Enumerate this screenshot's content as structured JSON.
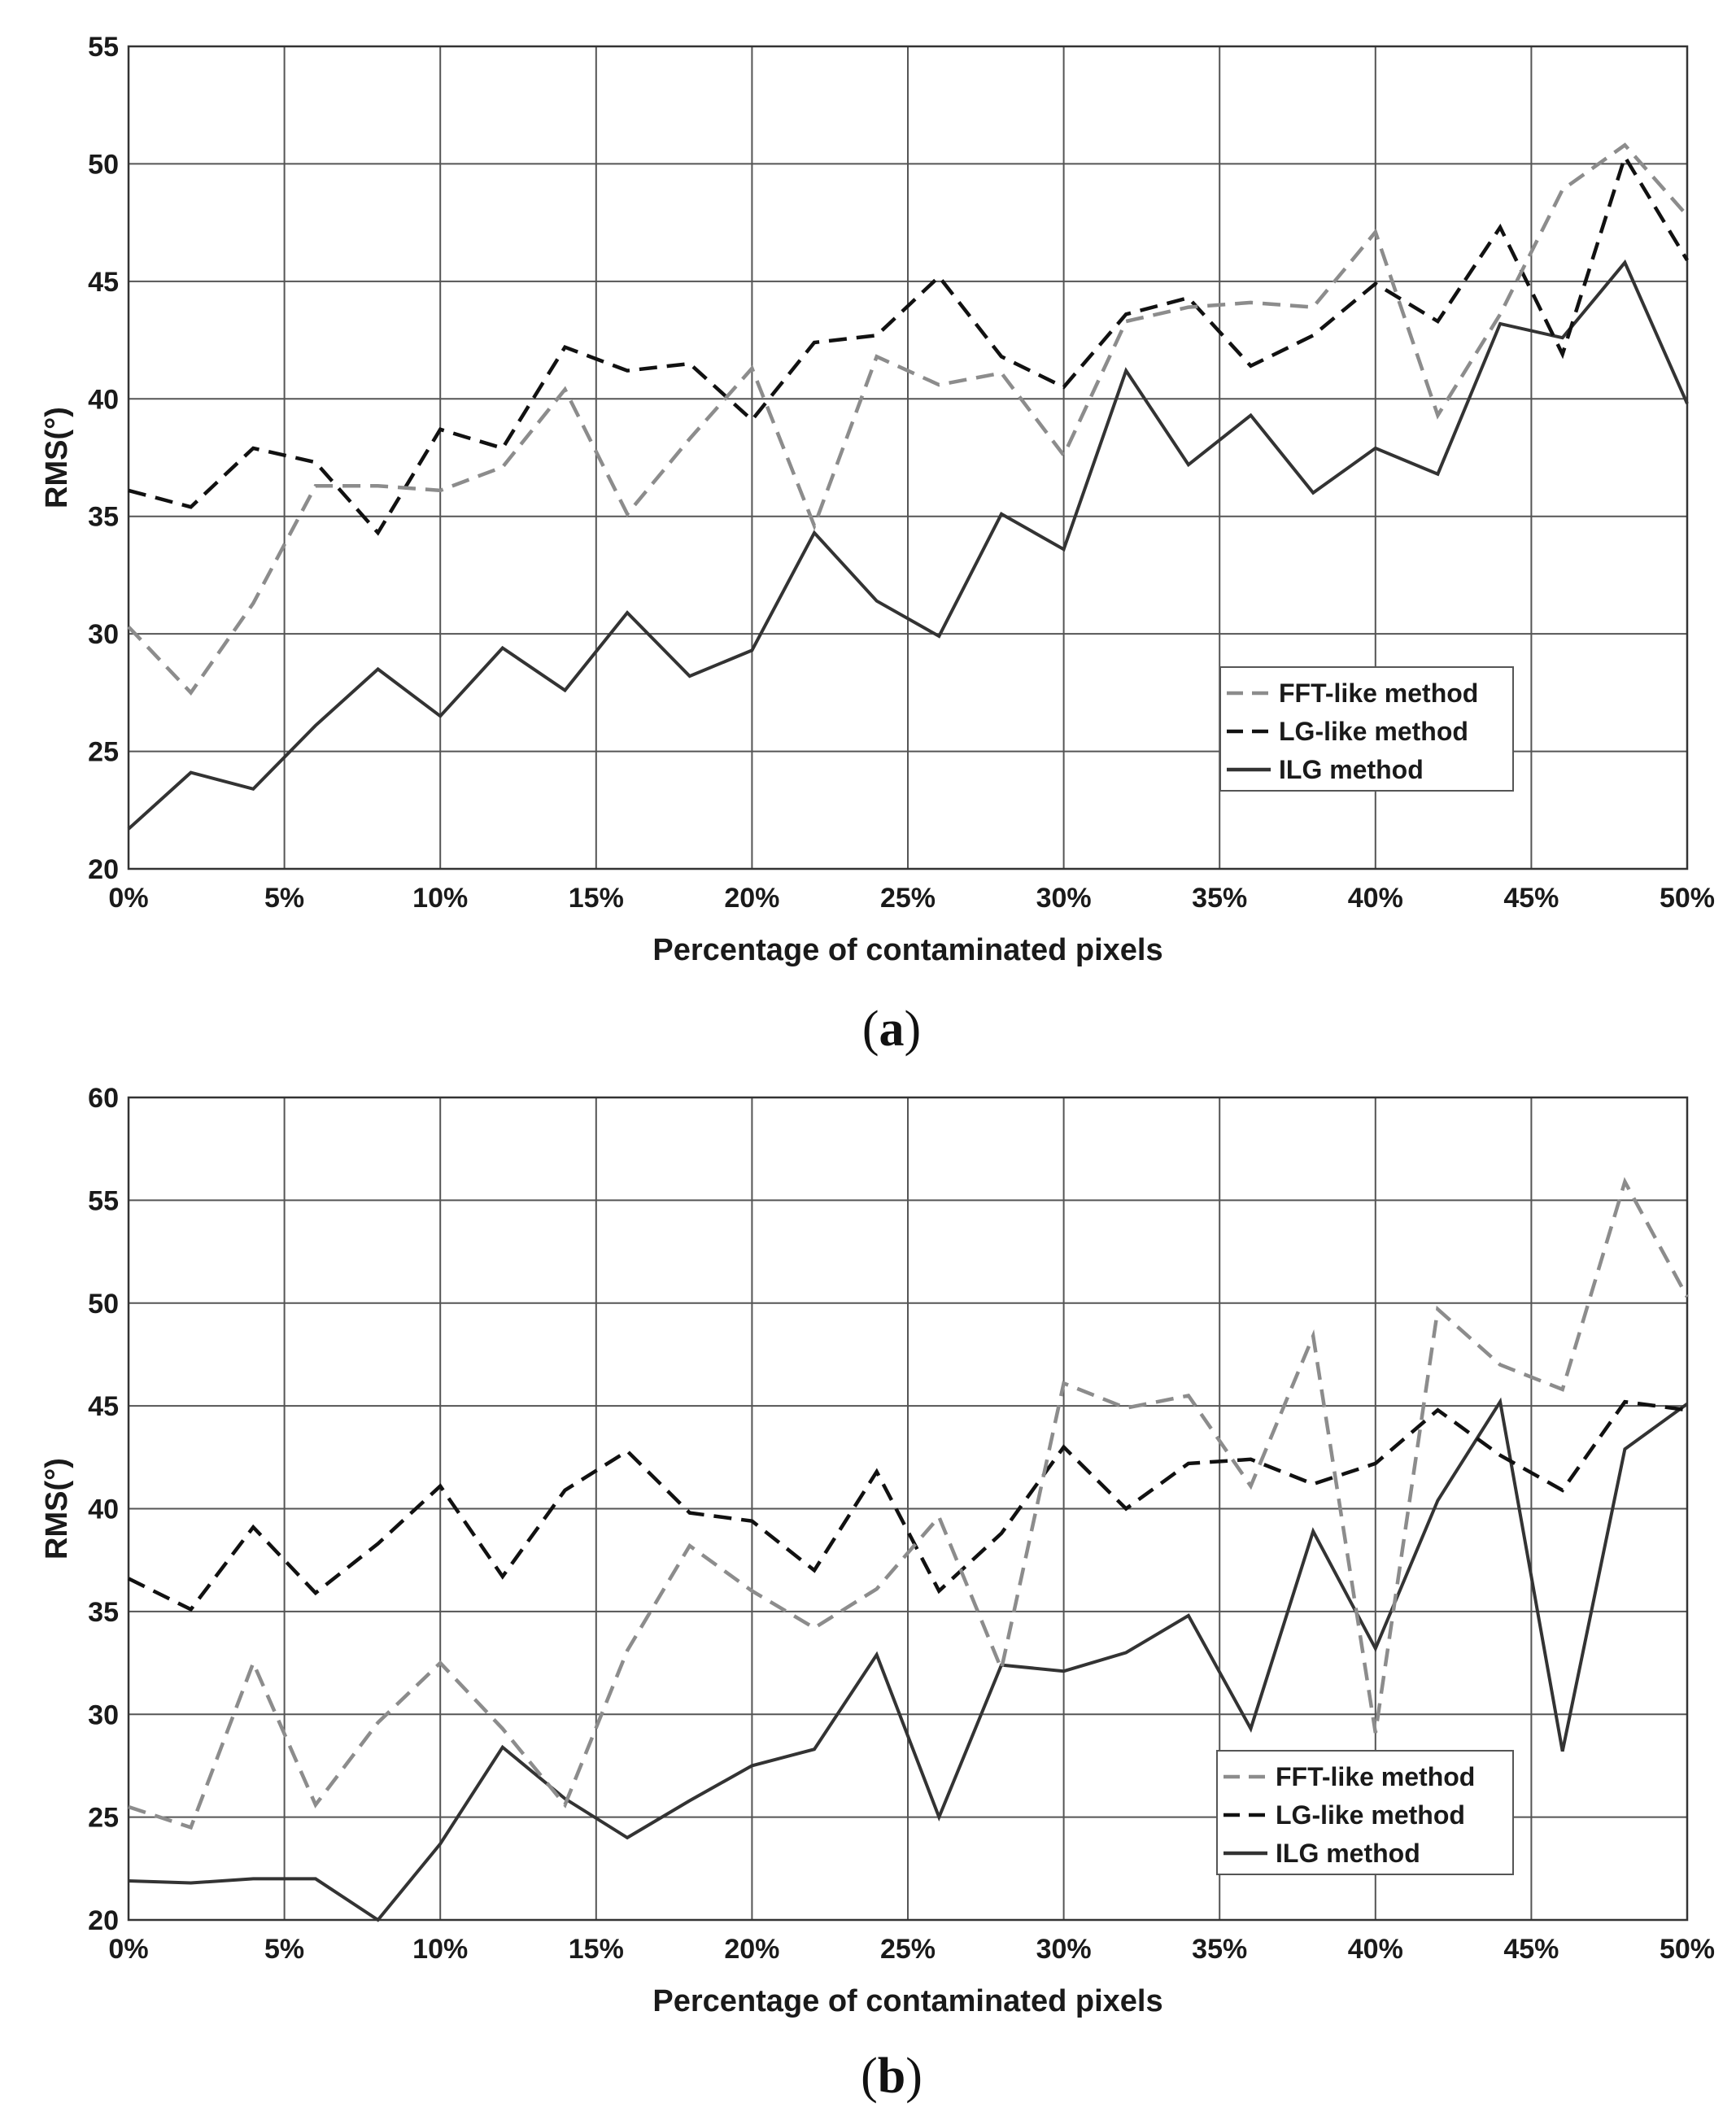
{
  "chart_data": [
    {
      "type": "line",
      "panel_label": "a",
      "xlabel": "Percentage of contaminated pixels",
      "ylabel": "RMS(°)",
      "xlim": [
        0,
        50
      ],
      "ylim": [
        20,
        55
      ],
      "xticks": [
        0,
        5,
        10,
        15,
        20,
        25,
        30,
        35,
        40,
        45,
        50
      ],
      "xtick_labels": [
        "0%",
        "5%",
        "10%",
        "15%",
        "20%",
        "25%",
        "30%",
        "35%",
        "40%",
        "45%",
        "50%"
      ],
      "yticks": [
        20,
        25,
        30,
        35,
        40,
        45,
        50,
        55
      ],
      "ytick_labels": [
        "20",
        "25",
        "30",
        "35",
        "40",
        "45",
        "50",
        "55"
      ],
      "grid": true,
      "legend": "lower-right",
      "x": [
        0,
        2,
        4,
        6,
        8,
        10,
        12,
        14,
        16,
        18,
        20,
        22,
        24,
        26,
        28,
        30,
        32,
        34,
        36,
        38,
        40,
        42,
        44,
        46,
        48,
        50
      ],
      "series": [
        {
          "name": "FFT-like method",
          "style": "dashed",
          "color": "#8c8c8c",
          "values": [
            30.3,
            27.5,
            31.3,
            36.3,
            36.3,
            36.1,
            37.1,
            40.4,
            35.1,
            38.3,
            41.3,
            34.6,
            41.8,
            40.6,
            41.1,
            37.6,
            43.3,
            43.9,
            44.1,
            43.9,
            47.1,
            39.3,
            43.6,
            48.9,
            50.8,
            47.8
          ]
        },
        {
          "name": "LG-like method",
          "style": "dashed",
          "color": "#111111",
          "values": [
            36.1,
            35.4,
            37.9,
            37.3,
            34.3,
            38.7,
            37.9,
            42.2,
            41.2,
            41.5,
            39.1,
            42.4,
            42.7,
            45.2,
            41.8,
            40.5,
            43.6,
            44.3,
            41.4,
            42.7,
            44.9,
            43.3,
            47.3,
            41.9,
            50.3,
            45.9
          ]
        },
        {
          "name": "ILG method",
          "style": "solid",
          "color": "#333333",
          "values": [
            21.7,
            24.1,
            23.4,
            26.1,
            28.5,
            26.5,
            29.4,
            27.6,
            30.9,
            28.2,
            29.3,
            34.3,
            31.4,
            29.9,
            35.1,
            33.6,
            41.2,
            37.2,
            39.3,
            36.0,
            37.9,
            36.8,
            43.2,
            42.6,
            45.8,
            39.8
          ]
        }
      ]
    },
    {
      "type": "line",
      "panel_label": "b",
      "xlabel": "Percentage of contaminated pixels",
      "ylabel": "RMS(°)",
      "xlim": [
        0,
        50
      ],
      "ylim": [
        20,
        60
      ],
      "xticks": [
        0,
        5,
        10,
        15,
        20,
        25,
        30,
        35,
        40,
        45,
        50
      ],
      "xtick_labels": [
        "0%",
        "5%",
        "10%",
        "15%",
        "20%",
        "25%",
        "30%",
        "35%",
        "40%",
        "45%",
        "50%"
      ],
      "yticks": [
        20,
        25,
        30,
        35,
        40,
        45,
        50,
        55,
        60
      ],
      "ytick_labels": [
        "20",
        "25",
        "30",
        "35",
        "40",
        "45",
        "50",
        "55",
        "60"
      ],
      "grid": true,
      "legend": "lower-right",
      "x": [
        0,
        2,
        4,
        6,
        8,
        10,
        12,
        14,
        16,
        18,
        20,
        22,
        24,
        26,
        28,
        30,
        32,
        34,
        36,
        38,
        40,
        42,
        44,
        46,
        48,
        50
      ],
      "series": [
        {
          "name": "FFT-like method",
          "style": "dashed",
          "color": "#8c8c8c",
          "values": [
            25.5,
            24.5,
            32.5,
            25.6,
            29.6,
            32.5,
            29.3,
            25.6,
            33.1,
            38.2,
            36.0,
            34.2,
            36.1,
            39.6,
            32.2,
            46.1,
            44.9,
            45.5,
            41.1,
            48.4,
            29.1,
            49.7,
            47.0,
            45.8,
            55.9,
            50.3
          ]
        },
        {
          "name": "LG-like method",
          "style": "dashed",
          "color": "#111111",
          "values": [
            36.6,
            35.1,
            39.1,
            35.9,
            38.3,
            41.1,
            36.7,
            40.9,
            42.8,
            39.8,
            39.4,
            37.0,
            41.8,
            36.0,
            38.8,
            43.0,
            40.0,
            42.2,
            42.4,
            41.2,
            42.2,
            44.8,
            42.6,
            40.9,
            45.2,
            44.8
          ]
        },
        {
          "name": "ILG method",
          "style": "solid",
          "color": "#333333",
          "values": [
            21.9,
            21.8,
            22.0,
            22.0,
            20.0,
            23.7,
            28.4,
            25.9,
            24.0,
            25.8,
            27.5,
            28.3,
            32.9,
            25.0,
            32.4,
            32.1,
            33.0,
            34.8,
            29.3,
            38.9,
            33.2,
            40.4,
            45.2,
            28.2,
            42.9,
            45.1
          ]
        }
      ]
    }
  ]
}
